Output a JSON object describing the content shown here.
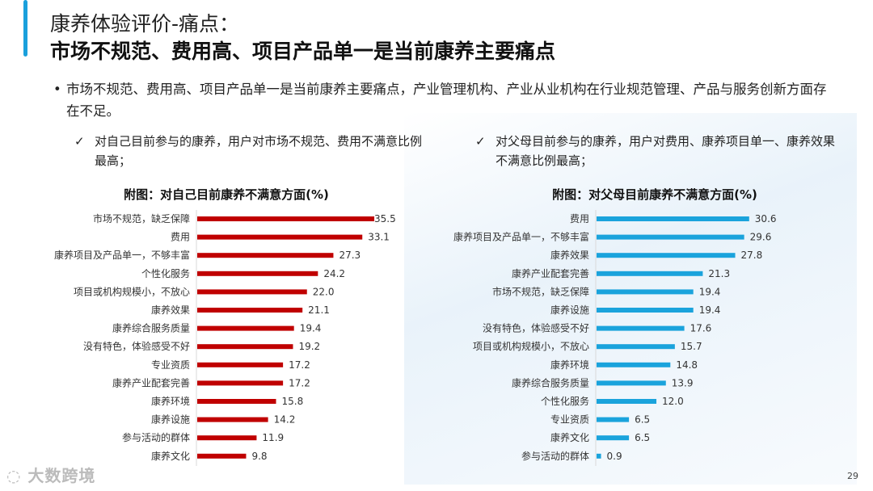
{
  "header": {
    "title": "康养体验评价-痛点：",
    "subtitle": "市场不规范、费用高、项目产品单一是当前康养主要痛点"
  },
  "bullet": {
    "mark": "•",
    "text": "市场不规范、费用高、项目产品单一是当前康养主要痛点，产业管理机构、产业从业机构在行业规范管理、产品与服务创新方面存在不足。"
  },
  "points": [
    {
      "mark": "✓",
      "text": "对自己目前参与的康养，用户对市场不规范、费用不满意比例最高；"
    },
    {
      "mark": "✓",
      "text": "对父母目前参与的康养，用户对费用、康养项目单一、康养效果不满意比例最高；"
    }
  ],
  "page_number": "29",
  "watermark": "大数跨境",
  "chart_data": [
    {
      "type": "bar",
      "orientation": "horizontal",
      "title": "附图：对自己目前康养不满意方面(%)",
      "color": "#c00000",
      "categories": [
        "市场不规范，缺乏保障",
        "费用",
        "康养项目及产品单一，不够丰富",
        "个性化服务",
        "项目或机构规模小，不放心",
        "康养效果",
        "康养综合服务质量",
        "没有特色，体验感受不好",
        "专业资质",
        "康养产业配套完善",
        "康养环境",
        "康养设施",
        "参与活动的群体",
        "康养文化"
      ],
      "values": [
        35.5,
        33.1,
        27.3,
        24.2,
        22.0,
        21.1,
        19.4,
        19.2,
        17.2,
        17.2,
        15.8,
        14.2,
        11.9,
        9.8
      ],
      "labels": [
        "35.5",
        "33.1",
        "27.3",
        "24.2",
        "22.0",
        "21.1",
        "19.4",
        "19.2",
        "17.2",
        "17.2",
        "15.8",
        "14.2",
        "11.9",
        "9.8"
      ]
    },
    {
      "type": "bar",
      "orientation": "horizontal",
      "title": "附图：对父母目前康养不满意方面(%)",
      "color": "#1aa3dc",
      "categories": [
        "费用",
        "康养项目及产品单一，不够丰富",
        "康养效果",
        "康养产业配套完善",
        "市场不规范，缺乏保障",
        "康养设施",
        "没有特色，体验感受不好",
        "项目或机构规模小，不放心",
        "康养环境",
        "康养综合服务质量",
        "个性化服务",
        "专业资质",
        "康养文化",
        "参与活动的群体"
      ],
      "values": [
        30.6,
        29.6,
        27.8,
        21.3,
        19.4,
        19.4,
        17.6,
        15.7,
        14.8,
        13.9,
        12.0,
        6.5,
        6.5,
        0.9
      ],
      "labels": [
        "30.6",
        "29.6",
        "27.8",
        "21.3",
        "19.4",
        "19.4",
        "17.6",
        "15.7",
        "14.8",
        "13.9",
        "12.0",
        "6.5",
        "6.5",
        "0.9"
      ]
    }
  ]
}
